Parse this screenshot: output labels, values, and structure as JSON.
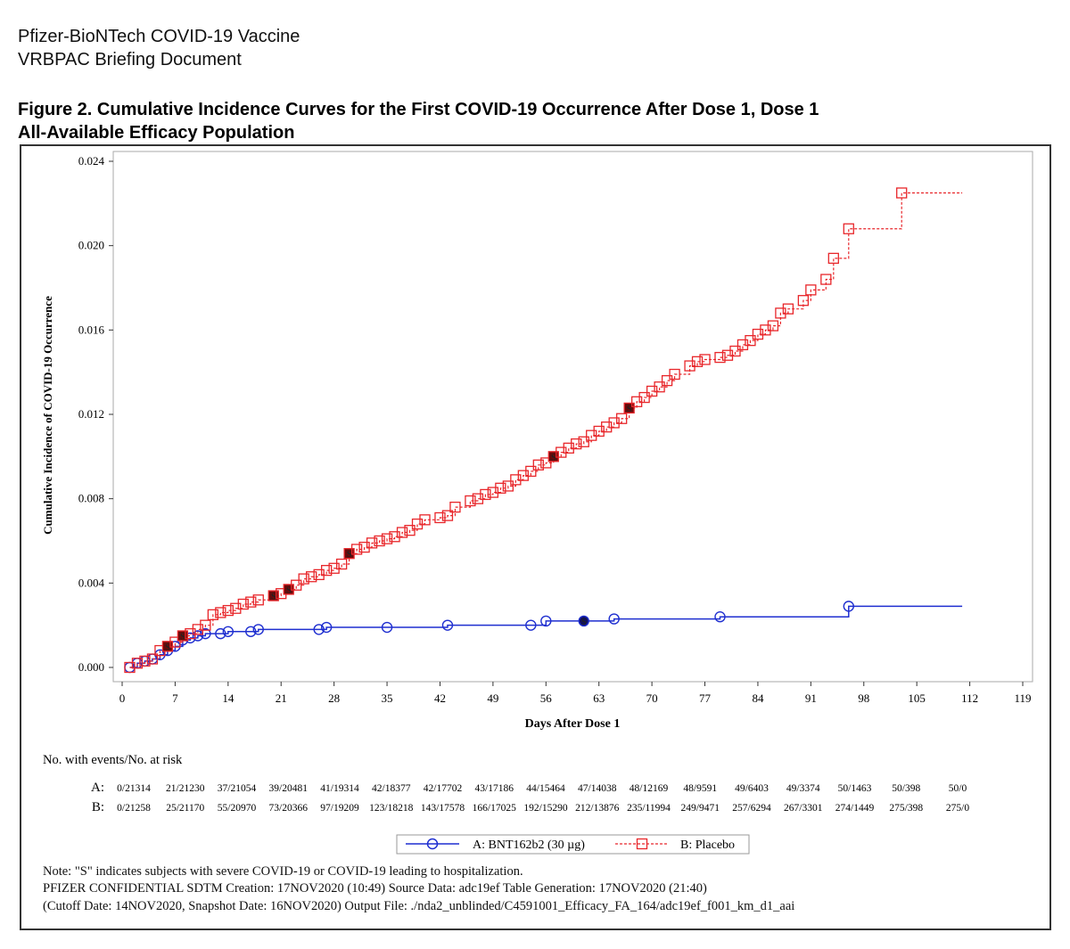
{
  "header": {
    "line1": "Pfizer-BioNTech COVID-19 Vaccine",
    "line2": "VRBPAC Briefing Document"
  },
  "figure_title": {
    "line1": "Figure 2. Cumulative Incidence Curves for the First COVID-19 Occurrence After Dose 1, Dose 1",
    "line2": "All-Available Efficacy Population"
  },
  "chart_data": {
    "type": "line",
    "subtype": "step",
    "xlabel": "Days After Dose 1",
    "ylabel": "Cumulative Incidence of COVID-19 Occurrence",
    "xlim": [
      0,
      119
    ],
    "ylim": [
      0,
      0.024
    ],
    "xticks": [
      "0",
      "7",
      "14",
      "21",
      "28",
      "35",
      "42",
      "49",
      "56",
      "63",
      "70",
      "77",
      "84",
      "91",
      "98",
      "105",
      "112",
      "119"
    ],
    "yticks": [
      "0.000",
      "0.004",
      "0.008",
      "0.012",
      "0.016",
      "0.020",
      "0.024"
    ],
    "grid": false,
    "legend_position": "bottom",
    "series": [
      {
        "name": "A: BNT162b2 (30 µg)",
        "color": "#1f2fd0",
        "marker": "circle",
        "line": "solid",
        "end_day": 111,
        "points": [
          [
            1,
            0
          ],
          [
            2,
            0.0002
          ],
          [
            3,
            0.0003
          ],
          [
            4,
            0.0004
          ],
          [
            5,
            0.0006
          ],
          [
            6,
            0.0008
          ],
          [
            7,
            0.001
          ],
          [
            8,
            0.0013
          ],
          [
            9,
            0.0014
          ],
          [
            10,
            0.0015
          ],
          [
            11,
            0.0016
          ],
          [
            13,
            0.0016
          ],
          [
            14,
            0.0017
          ],
          [
            17,
            0.0017
          ],
          [
            18,
            0.0018
          ],
          [
            26,
            0.0018
          ],
          [
            27,
            0.0019
          ],
          [
            35,
            0.0019
          ],
          [
            43,
            0.002
          ],
          [
            54,
            0.002
          ],
          [
            56,
            0.0022
          ],
          [
            61,
            0.0022
          ],
          [
            65,
            0.0023
          ],
          [
            79,
            0.0024
          ],
          [
            96,
            0.0029
          ]
        ],
        "severe_days": [
          61
        ]
      },
      {
        "name": "B: Placebo",
        "color": "#e8262a",
        "marker": "square",
        "line": "dashed",
        "end_day": 111,
        "points": [
          [
            1,
            0
          ],
          [
            2,
            0.0002
          ],
          [
            3,
            0.0003
          ],
          [
            4,
            0.0004
          ],
          [
            5,
            0.0008
          ],
          [
            6,
            0.001
          ],
          [
            7,
            0.0012
          ],
          [
            8,
            0.0015
          ],
          [
            9,
            0.0016
          ],
          [
            10,
            0.0018
          ],
          [
            11,
            0.002
          ],
          [
            12,
            0.0025
          ],
          [
            13,
            0.0026
          ],
          [
            14,
            0.0027
          ],
          [
            15,
            0.0028
          ],
          [
            16,
            0.003
          ],
          [
            17,
            0.0031
          ],
          [
            18,
            0.0032
          ],
          [
            20,
            0.0034
          ],
          [
            21,
            0.0035
          ],
          [
            22,
            0.0037
          ],
          [
            23,
            0.0039
          ],
          [
            24,
            0.0042
          ],
          [
            25,
            0.0043
          ],
          [
            26,
            0.0044
          ],
          [
            27,
            0.0046
          ],
          [
            28,
            0.0047
          ],
          [
            29,
            0.0049
          ],
          [
            30,
            0.0054
          ],
          [
            31,
            0.0056
          ],
          [
            32,
            0.0057
          ],
          [
            33,
            0.0059
          ],
          [
            34,
            0.006
          ],
          [
            35,
            0.0061
          ],
          [
            36,
            0.0062
          ],
          [
            37,
            0.0064
          ],
          [
            38,
            0.0065
          ],
          [
            39,
            0.0068
          ],
          [
            40,
            0.007
          ],
          [
            42,
            0.0071
          ],
          [
            43,
            0.0072
          ],
          [
            44,
            0.0076
          ],
          [
            46,
            0.0079
          ],
          [
            47,
            0.008
          ],
          [
            48,
            0.0082
          ],
          [
            49,
            0.0083
          ],
          [
            50,
            0.0085
          ],
          [
            51,
            0.0086
          ],
          [
            52,
            0.0089
          ],
          [
            53,
            0.0091
          ],
          [
            54,
            0.0093
          ],
          [
            55,
            0.0096
          ],
          [
            56,
            0.0097
          ],
          [
            57,
            0.01
          ],
          [
            58,
            0.0102
          ],
          [
            59,
            0.0104
          ],
          [
            60,
            0.0106
          ],
          [
            61,
            0.0107
          ],
          [
            62,
            0.011
          ],
          [
            63,
            0.0112
          ],
          [
            64,
            0.0114
          ],
          [
            65,
            0.0116
          ],
          [
            66,
            0.0118
          ],
          [
            67,
            0.0123
          ],
          [
            68,
            0.0126
          ],
          [
            69,
            0.0128
          ],
          [
            70,
            0.0131
          ],
          [
            71,
            0.0133
          ],
          [
            72,
            0.0136
          ],
          [
            73,
            0.0139
          ],
          [
            75,
            0.0143
          ],
          [
            76,
            0.0145
          ],
          [
            77,
            0.0146
          ],
          [
            79,
            0.0147
          ],
          [
            80,
            0.0148
          ],
          [
            81,
            0.015
          ],
          [
            82,
            0.0153
          ],
          [
            83,
            0.0155
          ],
          [
            84,
            0.0158
          ],
          [
            85,
            0.016
          ],
          [
            86,
            0.0162
          ],
          [
            87,
            0.0168
          ],
          [
            88,
            0.017
          ],
          [
            90,
            0.0174
          ],
          [
            91,
            0.0179
          ],
          [
            93,
            0.0184
          ],
          [
            94,
            0.0194
          ],
          [
            96,
            0.0208
          ],
          [
            103,
            0.0225
          ]
        ],
        "severe_days": [
          6,
          8,
          20,
          22,
          30,
          57,
          67
        ]
      }
    ],
    "severe_marker_label": "S"
  },
  "at_risk": {
    "title": "No. with events/No. at risk",
    "rows": [
      {
        "label": "A:",
        "values": [
          "0/21314",
          "21/21230",
          "37/21054",
          "39/20481",
          "41/19314",
          "42/18377",
          "42/17702",
          "43/17186",
          "44/15464",
          "47/14038",
          "48/12169",
          "48/9591",
          "49/6403",
          "49/3374",
          "50/1463",
          "50/398",
          "50/0"
        ]
      },
      {
        "label": "B:",
        "values": [
          "0/21258",
          "25/21170",
          "55/20970",
          "73/20366",
          "97/19209",
          "123/18218",
          "143/17578",
          "166/17025",
          "192/15290",
          "212/13876",
          "235/11994",
          "249/9471",
          "257/6294",
          "267/3301",
          "274/1449",
          "275/398",
          "275/0"
        ]
      }
    ]
  },
  "legend": {
    "a": "A: BNT162b2 (30 µg)",
    "b": "B: Placebo"
  },
  "notes": [
    "Note: \"S\" indicates subjects with severe COVID-19 or COVID-19 leading to hospitalization.",
    "PFIZER CONFIDENTIAL  SDTM Creation: 17NOV2020 (10:49)  Source Data: adc19ef  Table Generation: 17NOV2020 (21:40)",
    "(Cutoff Date: 14NOV2020, Snapshot Date: 16NOV2020) Output File: ./nda2_unblinded/C4591001_Efficacy_FA_164/adc19ef_f001_km_d1_aai"
  ]
}
